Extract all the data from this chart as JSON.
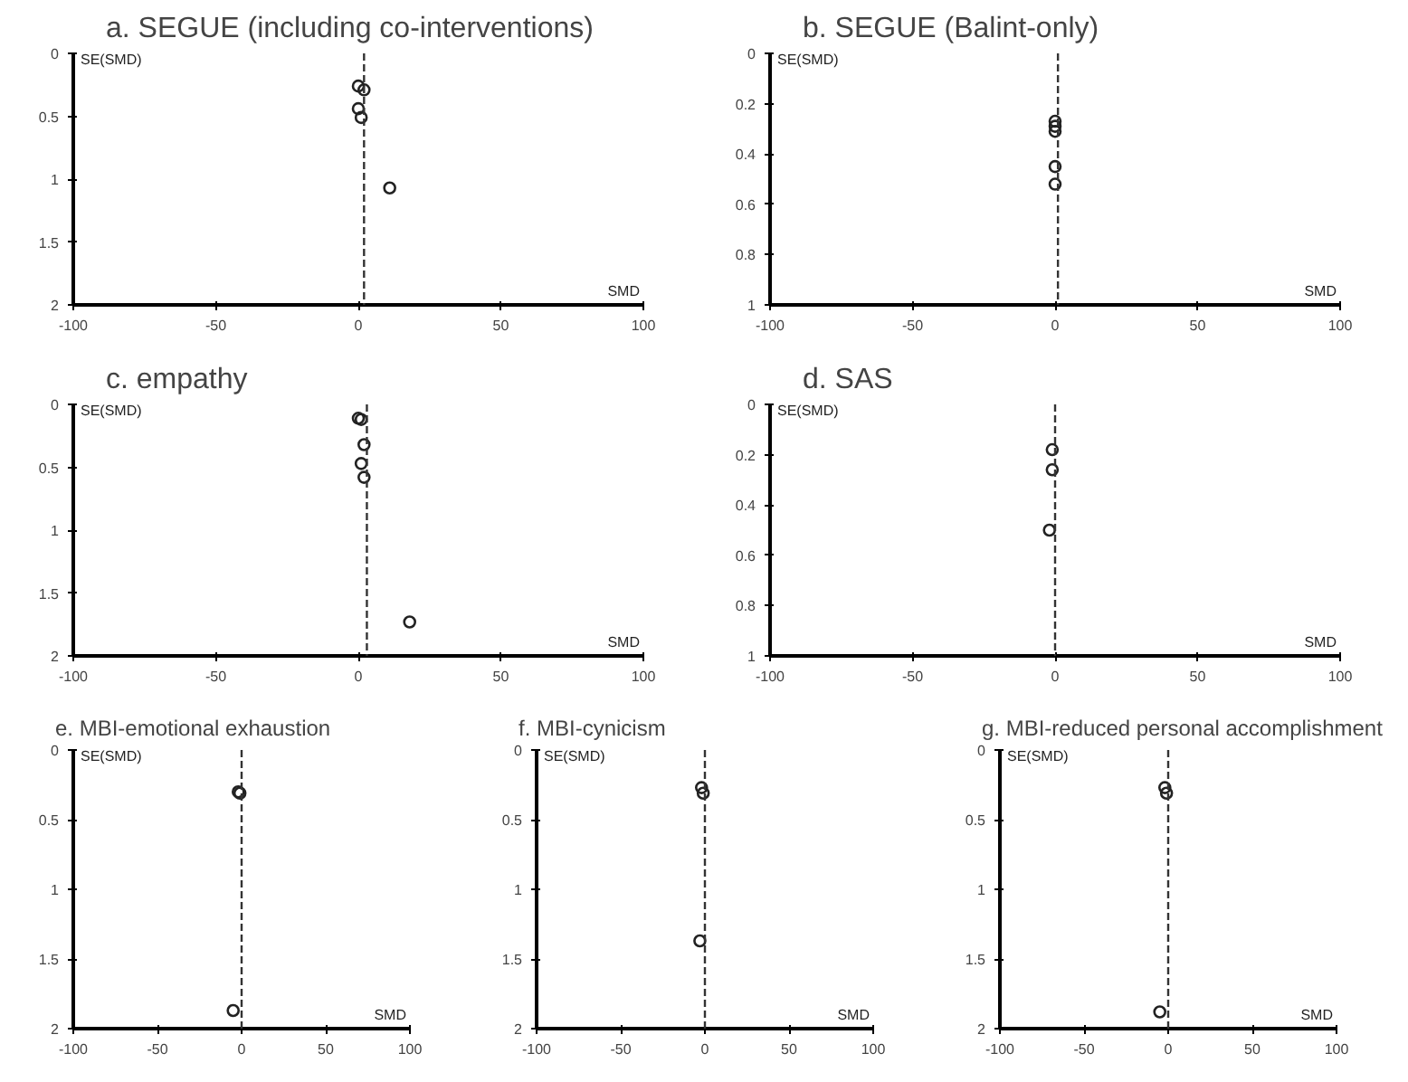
{
  "chart_data": [
    {
      "type": "scatter",
      "title": "a. SEGUE (including co-interventions)",
      "xlabel": "SMD",
      "ylabel": "SE(SMD)",
      "xlim": [
        -100,
        100
      ],
      "xticks": [
        -100,
        -50,
        0,
        50,
        100
      ],
      "ylim": [
        2,
        0
      ],
      "yticks": [
        0,
        0.5,
        1,
        1.5,
        2
      ],
      "marker": "circle",
      "grid": false,
      "series": [
        {
          "color": "#222222",
          "x": [
            0,
            2,
            0,
            1,
            11
          ],
          "values": [
            0.26,
            0.29,
            0.44,
            0.51,
            1.07
          ]
        }
      ],
      "ref_lines": [
        {
          "axis": "x",
          "value": 2,
          "line_style": "dashed",
          "color": "#333333"
        }
      ]
    },
    {
      "type": "scatter",
      "title": "b. SEGUE (Balint-only)",
      "xlabel": "SMD",
      "ylabel": "SE(SMD)",
      "xlim": [
        -100,
        100
      ],
      "xticks": [
        -100,
        -50,
        0,
        50,
        100
      ],
      "ylim": [
        1,
        0
      ],
      "yticks": [
        0,
        0.2,
        0.4,
        0.6,
        0.8,
        1
      ],
      "marker": "circle",
      "grid": false,
      "series": [
        {
          "color": "#222222",
          "x": [
            0,
            0,
            0,
            0,
            0
          ],
          "values": [
            0.27,
            0.29,
            0.31,
            0.45,
            0.52
          ]
        }
      ],
      "ref_lines": [
        {
          "axis": "x",
          "value": 1,
          "line_style": "dashed",
          "color": "#333333"
        }
      ]
    },
    {
      "type": "scatter",
      "title": "c. empathy",
      "xlabel": "SMD",
      "ylabel": "SE(SMD)",
      "xlim": [
        -100,
        100
      ],
      "xticks": [
        -100,
        -50,
        0,
        50,
        100
      ],
      "ylim": [
        2,
        0
      ],
      "yticks": [
        0,
        0.5,
        1,
        1.5,
        2
      ],
      "marker": "circle",
      "grid": false,
      "series": [
        {
          "color": "#222222",
          "x": [
            0,
            1,
            2,
            1,
            2,
            18
          ],
          "values": [
            0.11,
            0.12,
            0.32,
            0.47,
            0.58,
            1.73
          ]
        }
      ],
      "ref_lines": [
        {
          "axis": "x",
          "value": 3,
          "line_style": "dashed",
          "color": "#333333"
        }
      ]
    },
    {
      "type": "scatter",
      "title": "d. SAS",
      "xlabel": "SMD",
      "ylabel": "SE(SMD)",
      "xlim": [
        -100,
        100
      ],
      "xticks": [
        -100,
        -50,
        0,
        50,
        100
      ],
      "ylim": [
        1,
        0
      ],
      "yticks": [
        0,
        0.2,
        0.4,
        0.6,
        0.8,
        1
      ],
      "marker": "circle",
      "grid": false,
      "series": [
        {
          "color": "#222222",
          "x": [
            -1,
            -1,
            -2
          ],
          "values": [
            0.18,
            0.26,
            0.5
          ]
        }
      ],
      "ref_lines": [
        {
          "axis": "x",
          "value": 0,
          "line_style": "dashed",
          "color": "#333333"
        }
      ]
    },
    {
      "type": "scatter",
      "title": "e. MBI-emotional exhaustion",
      "xlabel": "SMD",
      "ylabel": "SE(SMD)",
      "xlim": [
        -100,
        100
      ],
      "xticks": [
        -100,
        -50,
        0,
        50,
        100
      ],
      "ylim": [
        2,
        0
      ],
      "yticks": [
        0,
        0.5,
        1,
        1.5,
        2
      ],
      "marker": "circle",
      "grid": false,
      "series": [
        {
          "color": "#222222",
          "x": [
            -2,
            -1,
            -5
          ],
          "values": [
            0.3,
            0.31,
            1.87
          ]
        }
      ],
      "ref_lines": [
        {
          "axis": "x",
          "value": 0,
          "line_style": "dashed",
          "color": "#333333"
        }
      ]
    },
    {
      "type": "scatter",
      "title": "f. MBI-cynicism",
      "xlabel": "SMD",
      "ylabel": "SE(SMD)",
      "xlim": [
        -100,
        100
      ],
      "xticks": [
        -100,
        -50,
        0,
        50,
        100
      ],
      "ylim": [
        2,
        0
      ],
      "yticks": [
        0,
        0.5,
        1,
        1.5,
        2
      ],
      "marker": "circle",
      "grid": false,
      "series": [
        {
          "color": "#222222",
          "x": [
            -2,
            -1,
            -3
          ],
          "values": [
            0.27,
            0.31,
            1.37
          ]
        }
      ],
      "ref_lines": [
        {
          "axis": "x",
          "value": 0,
          "line_style": "dashed",
          "color": "#333333"
        }
      ]
    },
    {
      "type": "scatter",
      "title": "g. MBI-reduced personal accomplishment",
      "xlabel": "SMD",
      "ylabel": "SE(SMD)",
      "xlim": [
        -100,
        100
      ],
      "xticks": [
        -100,
        -50,
        0,
        50,
        100
      ],
      "ylim": [
        2,
        0
      ],
      "yticks": [
        0,
        0.5,
        1,
        1.5,
        2
      ],
      "marker": "circle",
      "grid": false,
      "series": [
        {
          "color": "#222222",
          "x": [
            -2,
            -1,
            -5
          ],
          "values": [
            0.27,
            0.31,
            1.88
          ]
        }
      ],
      "ref_lines": [
        {
          "axis": "x",
          "value": 0,
          "line_style": "dashed",
          "color": "#333333"
        }
      ]
    }
  ]
}
